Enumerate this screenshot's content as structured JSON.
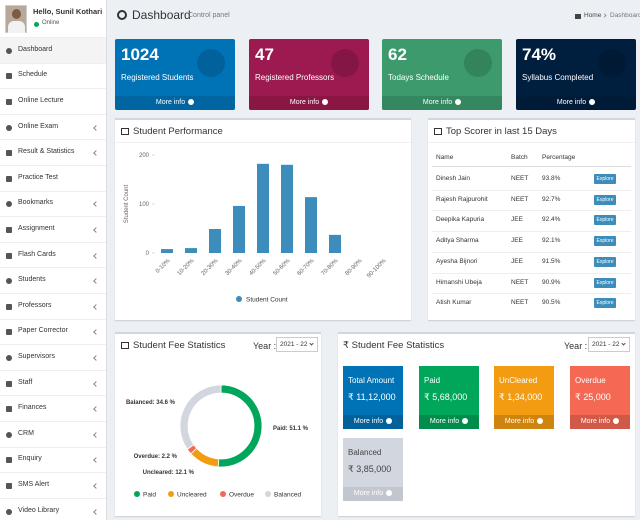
{
  "sidebar": {
    "user": {
      "greeting": "Hello, Sunil Kothari",
      "status": "Online"
    },
    "menu": [
      "Dashboard",
      "Schedule",
      "Online Lecture",
      "Online Exam",
      "Result & Statistics",
      "Practice Test",
      "Bookmarks",
      "Assignment",
      "Flash Cards",
      "Students",
      "Professors",
      "Paper Corrector",
      "Supervisors",
      "Staff",
      "Finances",
      "CRM",
      "Enquiry",
      "SMS Alert",
      "Video Library"
    ]
  },
  "header": {
    "title": "Dashboard",
    "subtitle": "Control panel",
    "breadcrumb": [
      "Home",
      "Dashboard"
    ]
  },
  "stat_boxes": [
    {
      "value": "1024",
      "label": "Registered Students",
      "link": "More info"
    },
    {
      "value": "47",
      "label": "Registered Professors",
      "link": "More info"
    },
    {
      "value": "62",
      "label": "Todays Schedule",
      "link": "More info"
    },
    {
      "value": "74%",
      "label": "Syllabus Completed",
      "link": "More info"
    }
  ],
  "chart_data": [
    {
      "type": "bar",
      "title": "Student Performance",
      "y_label": "Student Count",
      "categories": [
        "0-10%",
        "10-20%",
        "20-30%",
        "30-40%",
        "40-50%",
        "50-60%",
        "60-70%",
        "70-80%",
        "80-90%",
        "90-100%"
      ],
      "series": [
        {
          "name": "Student Count",
          "color": "#3c8dbc",
          "values": [
            8,
            10,
            49,
            96,
            182,
            180,
            114,
            37,
            0,
            0
          ]
        }
      ],
      "ylim": [
        0,
        200
      ],
      "yticks": [
        0,
        100,
        200
      ],
      "grid": false,
      "legend": "bottom"
    },
    {
      "type": "pie",
      "title": "Student Fee Statistics",
      "donut": true,
      "categories": [
        "Paid",
        "Uncleared",
        "Overdue",
        "Balanced"
      ],
      "values": [
        51.1,
        12.1,
        2.2,
        34.6
      ],
      "value_labels": [
        "Paid: 51.1 %",
        "Uncleared: 12.1 %",
        "Overdue: 2.2 %",
        "Balanced: 34.6 %"
      ],
      "colors": [
        "#00a65a",
        "#f39c12",
        "#f56954",
        "#d2d6de"
      ],
      "legend": "bottom",
      "year_label": "Year :",
      "year": "2021 - 22"
    }
  ],
  "top_scorers": {
    "title": "Top Scorer in last 15 Days",
    "columns": [
      "Name",
      "Batch",
      "Percentage"
    ],
    "rows": [
      [
        "Dinesh Jain",
        "NEET",
        "93.8%"
      ],
      [
        "Rajesh Rajpurohit",
        "NEET",
        "92.7%"
      ],
      [
        "Deepika Kapuria",
        "JEE",
        "92.4%"
      ],
      [
        "Aditya Sharma",
        "JEE",
        "92.1%"
      ],
      [
        "Ayesha Bijnori",
        "JEE",
        "91.5%"
      ],
      [
        "Himanshi Ubeja",
        "NEET",
        "90.9%"
      ],
      [
        "Atish Kumar",
        "NEET",
        "90.5%"
      ]
    ],
    "action": "Explore"
  },
  "fee_stats": {
    "title": "₹ Student Fee Statistics",
    "year_label": "Year :",
    "year": "2021 - 22",
    "boxes": [
      {
        "label": "Total Amount",
        "amount": "₹ 11,12,000",
        "link": "More info"
      },
      {
        "label": "Paid",
        "amount": "₹ 5,68,000",
        "link": "More info"
      },
      {
        "label": "UnCleared",
        "amount": "₹ 1,34,000",
        "link": "More info"
      },
      {
        "label": "Overdue",
        "amount": "₹ 25,000",
        "link": "More info"
      },
      {
        "label": "Balanced",
        "amount": "₹ 3,85,000",
        "link": "More info"
      }
    ]
  }
}
